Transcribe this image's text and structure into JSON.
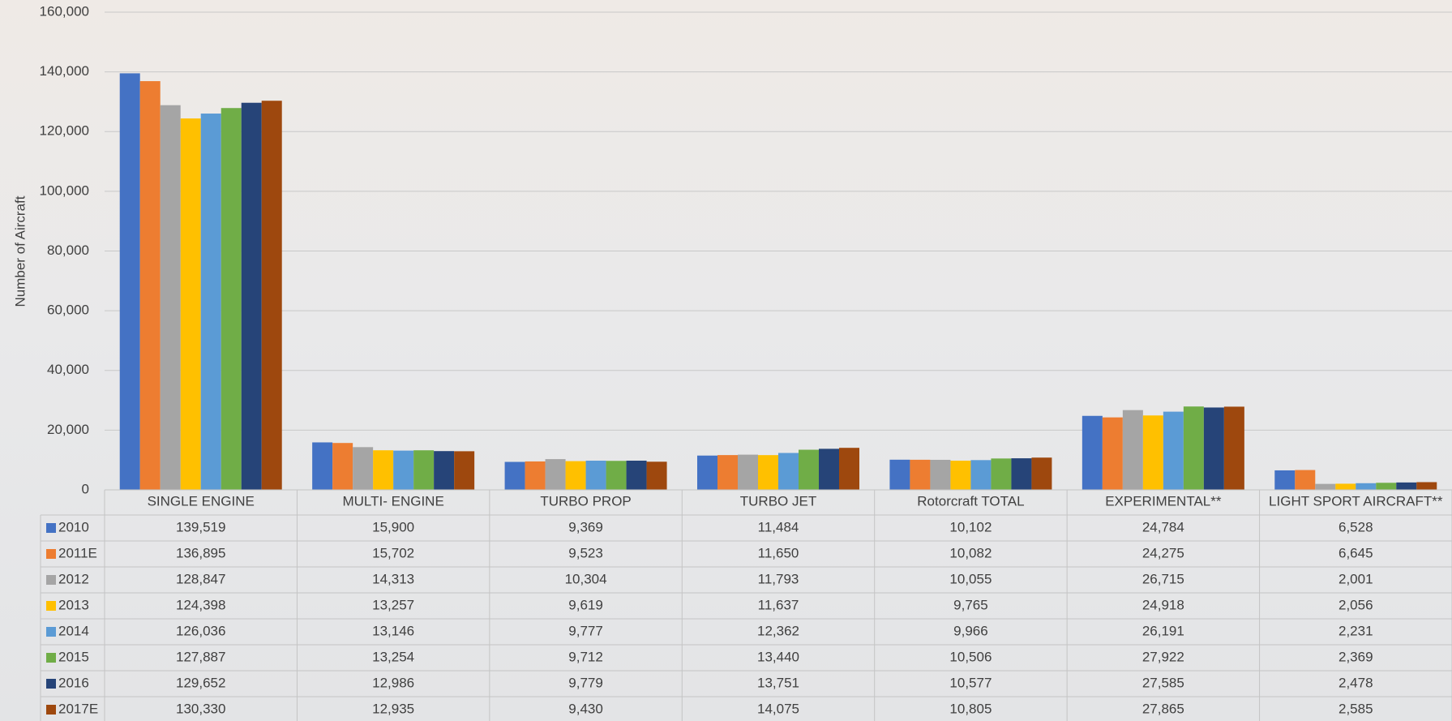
{
  "chart_data": {
    "type": "bar",
    "y_label": "Number of Aircraft",
    "categories": [
      "SINGLE ENGINE",
      "MULTI- ENGINE",
      "TURBO PROP",
      "TURBO JET",
      "Rotorcraft TOTAL",
      "EXPERIMENTAL**",
      "LIGHT SPORT AIRCRAFT**"
    ],
    "ylim": [
      0,
      160000
    ],
    "yticks": [
      0,
      {
        "value": 20000,
        "label": "20,000"
      },
      {
        "value": 40000,
        "label": "40,000"
      },
      {
        "value": 60000,
        "label": "60,000"
      },
      {
        "value": 80000,
        "label": "80,000"
      },
      {
        "value": 100000,
        "label": "100,000"
      },
      {
        "value": 120000,
        "label": "120,000"
      },
      {
        "value": 140000,
        "label": "140,000"
      },
      {
        "value": 160000,
        "label": "160,000"
      }
    ],
    "grid": true,
    "series": [
      {
        "name": "2010",
        "color": "#4472c4",
        "values": [
          139519,
          15900,
          9369,
          11484,
          10102,
          24784,
          6528
        ],
        "value_labels": [
          "139,519",
          "15,900",
          "9,369",
          "11,484",
          "10,102",
          "24,784",
          "6,528"
        ]
      },
      {
        "name": "2011E",
        "color": "#ed7d31",
        "values": [
          136895,
          15702,
          9523,
          11650,
          10082,
          24275,
          6645
        ],
        "value_labels": [
          "136,895",
          "15,702",
          "9,523",
          "11,650",
          "10,082",
          "24,275",
          "6,645"
        ]
      },
      {
        "name": "2012",
        "color": "#a5a5a5",
        "values": [
          128847,
          14313,
          10304,
          11793,
          10055,
          26715,
          2001
        ],
        "value_labels": [
          "128,847",
          "14,313",
          "10,304",
          "11,793",
          "10,055",
          "26,715",
          "2,001"
        ]
      },
      {
        "name": "2013",
        "color": "#ffc000",
        "values": [
          124398,
          13257,
          9619,
          11637,
          9765,
          24918,
          2056
        ],
        "value_labels": [
          "124,398",
          "13,257",
          "9,619",
          "11,637",
          "9,765",
          "24,918",
          "2,056"
        ]
      },
      {
        "name": "2014",
        "color": "#5b9bd5",
        "values": [
          126036,
          13146,
          9777,
          12362,
          9966,
          26191,
          2231
        ],
        "value_labels": [
          "126,036",
          "13,146",
          "9,777",
          "12,362",
          "9,966",
          "26,191",
          "2,231"
        ]
      },
      {
        "name": "2015",
        "color": "#70ad47",
        "values": [
          127887,
          13254,
          9712,
          13440,
          10506,
          27922,
          2369
        ],
        "value_labels": [
          "127,887",
          "13,254",
          "9,712",
          "13,440",
          "10,506",
          "27,922",
          "2,369"
        ]
      },
      {
        "name": "2016",
        "color": "#264478",
        "values": [
          129652,
          12986,
          9779,
          13751,
          10577,
          27585,
          2478
        ],
        "value_labels": [
          "129,652",
          "12,986",
          "9,779",
          "13,751",
          "10,577",
          "27,585",
          "2,478"
        ]
      },
      {
        "name": "2017E",
        "color": "#9e480e",
        "values": [
          130330,
          12935,
          9430,
          14075,
          10805,
          27865,
          2585
        ],
        "value_labels": [
          "130,330",
          "12,935",
          "9,430",
          "14,075",
          "10,805",
          "27,865",
          "2,585"
        ]
      }
    ]
  }
}
